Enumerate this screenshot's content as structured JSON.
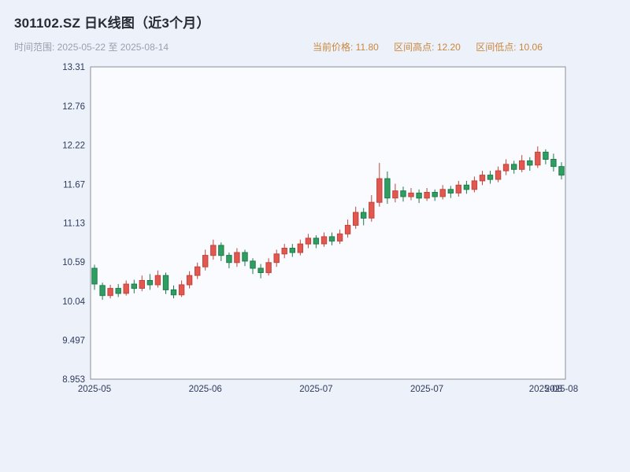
{
  "header": {
    "title": "301102.SZ 日K线图（近3个月）",
    "range_label": "时间范围: 2025-05-22 至 2025-08-14",
    "stats": [
      {
        "text": "当前价格: 11.80"
      },
      {
        "text": "区间高点: 12.20"
      },
      {
        "text": "区间低点: 10.06"
      }
    ]
  },
  "chart_data": {
    "type": "candlestick",
    "symbol": "301102.SZ",
    "title": "301102.SZ 日K线图（近3个月）",
    "date_range": [
      "2025-05-22",
      "2025-08-14"
    ],
    "current_price": 11.8,
    "range_high": 12.2,
    "range_low": 10.06,
    "up_color": "#e25750",
    "up_border": "#c0443c",
    "down_color": "#2f9e63",
    "down_border": "#1f7a49",
    "plot_bg": "#fafbfe",
    "axis_line_color": "#8a8f99",
    "axis_text_color": "#2f3b5e",
    "stats_color": "#c9873e",
    "y_axis": {
      "min": 8.953,
      "max": 13.31,
      "tick_labels": [
        "13.31",
        "12.76",
        "12.22",
        "11.67",
        "11.13",
        "10.59",
        "10.04",
        "9.497",
        "8.953"
      ]
    },
    "x_ticks": [
      {
        "index": 0,
        "label": "2025-05"
      },
      {
        "index": 14,
        "label": "2025-06"
      },
      {
        "index": 28,
        "label": "2025-07"
      },
      {
        "index": 42,
        "label": "2025-07"
      },
      {
        "index": 57,
        "label": "2025-08"
      },
      {
        "index": 59,
        "label": "2025-08"
      }
    ],
    "ohlc_order": "date,open,high,low,close",
    "candles": [
      [
        "2025-05-22",
        10.5,
        10.55,
        10.2,
        10.28
      ],
      [
        "2025-05-23",
        10.26,
        10.3,
        10.06,
        10.12
      ],
      [
        "2025-05-26",
        10.12,
        10.27,
        10.08,
        10.22
      ],
      [
        "2025-05-27",
        10.22,
        10.28,
        10.1,
        10.15
      ],
      [
        "2025-05-28",
        10.15,
        10.33,
        10.12,
        10.28
      ],
      [
        "2025-05-29",
        10.28,
        10.34,
        10.15,
        10.22
      ],
      [
        "2025-05-30",
        10.22,
        10.4,
        10.18,
        10.33
      ],
      [
        "2025-06-03",
        10.33,
        10.42,
        10.2,
        10.27
      ],
      [
        "2025-06-04",
        10.27,
        10.47,
        10.23,
        10.4
      ],
      [
        "2025-06-05",
        10.4,
        10.44,
        10.14,
        10.2
      ],
      [
        "2025-06-06",
        10.2,
        10.26,
        10.08,
        10.13
      ],
      [
        "2025-06-09",
        10.13,
        10.33,
        10.1,
        10.27
      ],
      [
        "2025-06-10",
        10.27,
        10.46,
        10.22,
        10.4
      ],
      [
        "2025-06-11",
        10.4,
        10.58,
        10.35,
        10.52
      ],
      [
        "2025-06-12",
        10.52,
        10.76,
        10.47,
        10.68
      ],
      [
        "2025-06-13",
        10.68,
        10.9,
        10.62,
        10.82
      ],
      [
        "2025-06-16",
        10.82,
        10.86,
        10.6,
        10.68
      ],
      [
        "2025-06-17",
        10.68,
        10.72,
        10.5,
        10.58
      ],
      [
        "2025-06-18",
        10.58,
        10.78,
        10.52,
        10.72
      ],
      [
        "2025-06-19",
        10.72,
        10.76,
        10.53,
        10.6
      ],
      [
        "2025-06-20",
        10.6,
        10.64,
        10.42,
        10.5
      ],
      [
        "2025-06-23",
        10.5,
        10.56,
        10.36,
        10.44
      ],
      [
        "2025-06-24",
        10.44,
        10.64,
        10.4,
        10.58
      ],
      [
        "2025-06-25",
        10.58,
        10.76,
        10.52,
        10.7
      ],
      [
        "2025-06-26",
        10.7,
        10.84,
        10.64,
        10.78
      ],
      [
        "2025-06-27",
        10.78,
        10.84,
        10.66,
        10.72
      ],
      [
        "2025-06-30",
        10.72,
        10.9,
        10.68,
        10.84
      ],
      [
        "2025-07-01",
        10.84,
        10.98,
        10.78,
        10.92
      ],
      [
        "2025-07-02",
        10.92,
        10.96,
        10.78,
        10.84
      ],
      [
        "2025-07-03",
        10.84,
        11.0,
        10.8,
        10.94
      ],
      [
        "2025-07-04",
        10.94,
        11.0,
        10.82,
        10.88
      ],
      [
        "2025-07-07",
        10.88,
        11.04,
        10.84,
        10.98
      ],
      [
        "2025-07-08",
        10.98,
        11.18,
        10.93,
        11.1
      ],
      [
        "2025-07-09",
        11.1,
        11.36,
        11.05,
        11.28
      ],
      [
        "2025-07-10",
        11.28,
        11.34,
        11.1,
        11.2
      ],
      [
        "2025-07-11",
        11.2,
        11.52,
        11.15,
        11.42
      ],
      [
        "2025-07-14",
        11.42,
        11.97,
        11.36,
        11.75
      ],
      [
        "2025-07-15",
        11.75,
        11.85,
        11.4,
        11.48
      ],
      [
        "2025-07-16",
        11.48,
        11.68,
        11.42,
        11.58
      ],
      [
        "2025-07-17",
        11.58,
        11.64,
        11.43,
        11.5
      ],
      [
        "2025-07-18",
        11.5,
        11.62,
        11.45,
        11.55
      ],
      [
        "2025-07-21",
        11.55,
        11.6,
        11.41,
        11.48
      ],
      [
        "2025-07-22",
        11.48,
        11.62,
        11.44,
        11.56
      ],
      [
        "2025-07-23",
        11.56,
        11.6,
        11.44,
        11.5
      ],
      [
        "2025-07-24",
        11.5,
        11.66,
        11.46,
        11.6
      ],
      [
        "2025-07-25",
        11.6,
        11.65,
        11.48,
        11.55
      ],
      [
        "2025-07-28",
        11.55,
        11.72,
        11.5,
        11.66
      ],
      [
        "2025-07-29",
        11.66,
        11.72,
        11.54,
        11.6
      ],
      [
        "2025-07-30",
        11.6,
        11.78,
        11.56,
        11.72
      ],
      [
        "2025-07-31",
        11.72,
        11.86,
        11.66,
        11.8
      ],
      [
        "2025-08-01",
        11.8,
        11.86,
        11.68,
        11.74
      ],
      [
        "2025-08-04",
        11.74,
        11.92,
        11.7,
        11.86
      ],
      [
        "2025-08-05",
        11.86,
        12.02,
        11.8,
        11.95
      ],
      [
        "2025-08-06",
        11.95,
        12.0,
        11.82,
        11.88
      ],
      [
        "2025-08-07",
        11.88,
        12.08,
        11.84,
        12.0
      ],
      [
        "2025-08-08",
        12.0,
        12.05,
        11.86,
        11.94
      ],
      [
        "2025-08-11",
        11.94,
        12.2,
        11.9,
        12.12
      ],
      [
        "2025-08-12",
        12.12,
        12.16,
        11.95,
        12.02
      ],
      [
        "2025-08-13",
        12.02,
        12.1,
        11.85,
        11.92
      ],
      [
        "2025-08-14",
        11.92,
        11.98,
        11.74,
        11.8
      ]
    ]
  }
}
